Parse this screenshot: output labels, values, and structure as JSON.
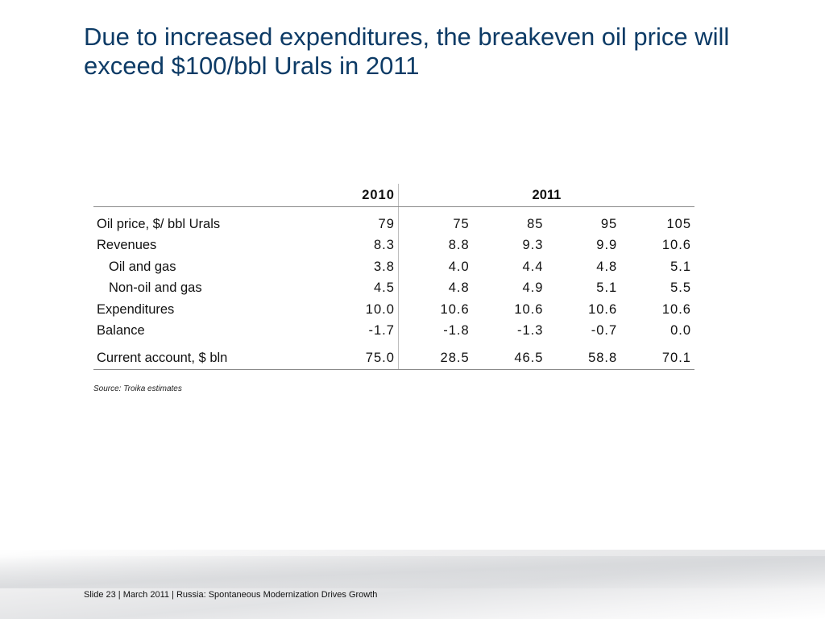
{
  "title": "Due to increased expenditures, the breakeven oil price will exceed $100/bbl Urals in 2011",
  "table": {
    "headers": {
      "year1": "2010",
      "year2": "2011"
    },
    "rows": [
      {
        "label": "Oil price, $/ bbl Urals",
        "values": [
          "79",
          "75",
          "85",
          "95",
          "105"
        ]
      },
      {
        "label": "Revenues",
        "values": [
          "8.3",
          "8.8",
          "9.3",
          "9.9",
          "10.6"
        ]
      },
      {
        "label": "Oil and gas",
        "values": [
          "3.8",
          "4.0",
          "4.4",
          "4.8",
          "5.1"
        ]
      },
      {
        "label": "Non-oil and gas",
        "values": [
          "4.5",
          "4.8",
          "4.9",
          "5.1",
          "5.5"
        ]
      },
      {
        "label": "Expenditures",
        "values": [
          "10.0",
          "10.6",
          "10.6",
          "10.6",
          "10.6"
        ]
      },
      {
        "label": "Balance",
        "values": [
          "-1.7",
          "-1.8",
          "-1.3",
          "-0.7",
          "0.0"
        ]
      },
      {
        "label": "Current account, $ bln",
        "values": [
          "75.0",
          "28.5",
          "46.5",
          "58.8",
          "70.1"
        ]
      }
    ]
  },
  "source": "Source: Troika estimates",
  "footer": "Slide 23  | March 2011 | Russia: Spontaneous Modernization Drives Growth",
  "colors": {
    "title": "#0d3b66",
    "text": "#111111",
    "rule": "#8a8a8a"
  }
}
